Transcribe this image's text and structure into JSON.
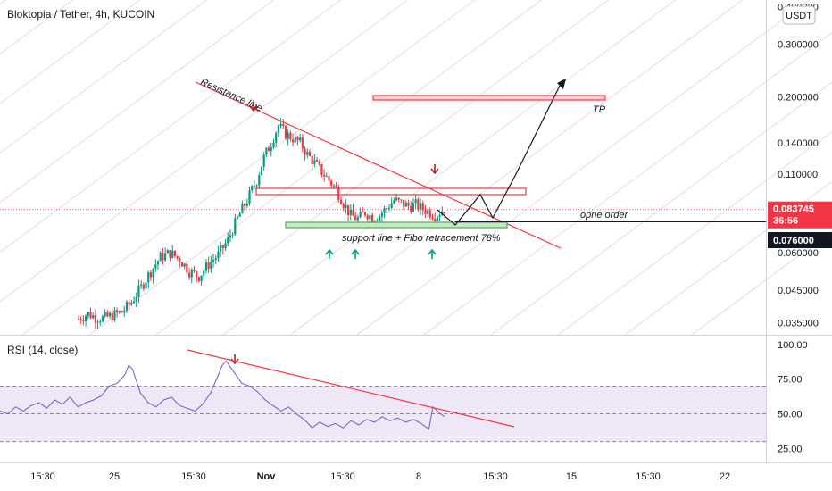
{
  "chart_data": {
    "type": "candlestick",
    "title": "Bloktopia / Tether, 4h, KUCOIN",
    "currency_badge": "USDT",
    "price_axis": {
      "scale": "log",
      "ylim": [
        0.033,
        0.41
      ],
      "ticks": [
        "0.035000",
        "0.045000",
        "0.060000",
        "0.076000",
        "0.110000",
        "0.140000",
        "0.200000",
        "0.300000",
        "0.400000"
      ],
      "tick_values": [
        0.035,
        0.045,
        0.06,
        0.076,
        0.11,
        0.14,
        0.2,
        0.3,
        0.4
      ]
    },
    "time_axis": {
      "ticks": [
        "15:30",
        "25",
        "15:30",
        "Nov",
        "15:30",
        "8",
        "15:30",
        "15",
        "15:30",
        "22"
      ],
      "bold_ticks": [
        "Nov"
      ]
    },
    "last_price": {
      "value": "0.083745",
      "countdown": "36:56",
      "color": "#f23645"
    },
    "order_price": {
      "value": "0.076000",
      "color": "#131722"
    },
    "candles": {
      "up_color": "#089981",
      "down_color": "#f23645",
      "close_path": [
        [
          0,
          0.036
        ],
        [
          4,
          0.0375
        ],
        [
          7,
          0.0365
        ],
        [
          10,
          0.0362
        ],
        [
          14,
          0.037
        ],
        [
          18,
          0.038
        ],
        [
          22,
          0.041
        ],
        [
          26,
          0.046
        ],
        [
          30,
          0.052
        ],
        [
          34,
          0.058
        ],
        [
          38,
          0.06
        ],
        [
          42,
          0.057
        ],
        [
          46,
          0.052
        ],
        [
          50,
          0.05
        ],
        [
          54,
          0.055
        ],
        [
          58,
          0.059
        ],
        [
          62,
          0.066
        ],
        [
          66,
          0.078
        ],
        [
          70,
          0.09
        ],
        [
          74,
          0.105
        ],
        [
          77,
          0.125
        ],
        [
          80,
          0.14
        ],
        [
          83,
          0.16
        ],
        [
          86,
          0.15
        ],
        [
          89,
          0.145
        ],
        [
          92,
          0.14
        ],
        [
          95,
          0.128
        ],
        [
          98,
          0.12
        ],
        [
          101,
          0.112
        ],
        [
          104,
          0.105
        ],
        [
          107,
          0.098
        ],
        [
          110,
          0.088
        ],
        [
          113,
          0.08
        ],
        [
          116,
          0.078
        ],
        [
          119,
          0.082
        ],
        [
          122,
          0.079
        ],
        [
          125,
          0.08
        ],
        [
          128,
          0.085
        ],
        [
          131,
          0.09
        ],
        [
          134,
          0.088
        ],
        [
          137,
          0.086
        ],
        [
          140,
          0.087
        ],
        [
          143,
          0.084
        ],
        [
          146,
          0.082
        ],
        [
          148,
          0.08
        ],
        [
          150,
          0.082
        ],
        [
          152,
          0.084
        ]
      ]
    },
    "annotations": {
      "resistance_label": "Resistance line",
      "support_label": "support line + Fibo retracement 78%",
      "tp_label": "TP",
      "order_label": "opne order",
      "resistance_line_color": "#f23645",
      "zone_red_color": "#f23645",
      "zone_green_color": "#4caf50",
      "signal_up_color": "#089981",
      "signal_down_color": "#b71c1c"
    },
    "rsi": {
      "title": "RSI (14, close)",
      "ticks": [
        "100.00",
        "75.00",
        "50.00",
        "25.00"
      ],
      "tick_values": [
        100,
        75,
        50,
        25
      ],
      "ylim": [
        15,
        105
      ],
      "band": [
        30,
        70
      ],
      "line_color": "#7e57c2",
      "band_color": "#ede7f6",
      "values": [
        [
          0,
          52
        ],
        [
          4,
          50
        ],
        [
          8,
          55
        ],
        [
          12,
          52
        ],
        [
          16,
          56
        ],
        [
          20,
          58
        ],
        [
          24,
          54
        ],
        [
          28,
          60
        ],
        [
          32,
          57
        ],
        [
          36,
          62
        ],
        [
          40,
          55
        ],
        [
          44,
          58
        ],
        [
          48,
          60
        ],
        [
          52,
          63
        ],
        [
          56,
          70
        ],
        [
          60,
          72
        ],
        [
          64,
          78
        ],
        [
          66,
          85
        ],
        [
          68,
          82
        ],
        [
          72,
          65
        ],
        [
          76,
          58
        ],
        [
          80,
          55
        ],
        [
          84,
          60
        ],
        [
          88,
          62
        ],
        [
          92,
          56
        ],
        [
          96,
          54
        ],
        [
          100,
          52
        ],
        [
          104,
          57
        ],
        [
          108,
          65
        ],
        [
          112,
          78
        ],
        [
          114,
          85
        ],
        [
          116,
          88
        ],
        [
          118,
          84
        ],
        [
          120,
          80
        ],
        [
          124,
          72
        ],
        [
          128,
          70
        ],
        [
          132,
          66
        ],
        [
          136,
          60
        ],
        [
          140,
          56
        ],
        [
          144,
          52
        ],
        [
          148,
          55
        ],
        [
          152,
          50
        ],
        [
          156,
          46
        ],
        [
          160,
          40
        ],
        [
          164,
          44
        ],
        [
          168,
          41
        ],
        [
          172,
          43
        ],
        [
          176,
          40
        ],
        [
          180,
          45
        ],
        [
          184,
          42
        ],
        [
          188,
          46
        ],
        [
          192,
          44
        ],
        [
          196,
          48
        ],
        [
          200,
          45
        ],
        [
          204,
          47
        ],
        [
          208,
          44
        ],
        [
          212,
          46
        ],
        [
          216,
          43
        ],
        [
          220,
          39
        ],
        [
          222,
          55
        ],
        [
          226,
          50
        ],
        [
          228,
          48
        ]
      ]
    }
  }
}
